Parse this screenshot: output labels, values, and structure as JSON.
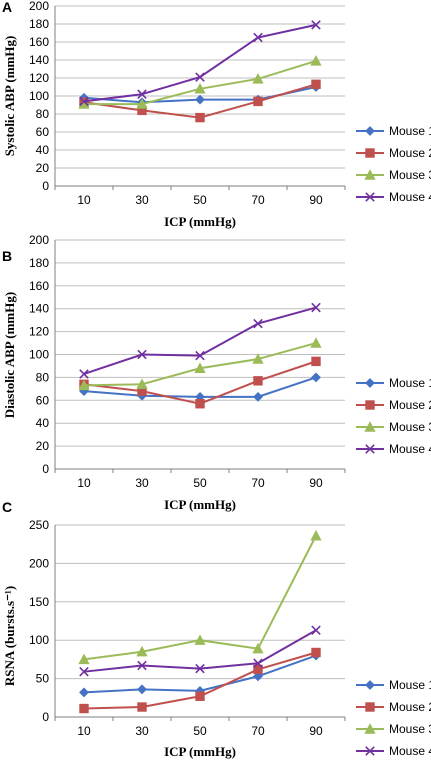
{
  "colors": {
    "mouse1": "#4472C4",
    "mouse2": "#C0504D",
    "mouse3": "#9BBB59",
    "mouse4": "#7030A0"
  },
  "chart_data": [
    {
      "panel": "A",
      "type": "line",
      "categories": [
        "10",
        "30",
        "50",
        "70",
        "90"
      ],
      "ylabel": "Systolic ABP (mmHg)",
      "xlabel": "ICP (mmHg)",
      "ylim": [
        0,
        200
      ],
      "yticks": [
        "0",
        "20",
        "40",
        "60",
        "80",
        "100",
        "120",
        "140",
        "160",
        "180",
        "200"
      ],
      "grid": true,
      "legend": "right",
      "series": [
        {
          "name": "Mouse 1",
          "marker": "diamond",
          "values": [
            98,
            93,
            96,
            96,
            110
          ]
        },
        {
          "name": "Mouse 2",
          "marker": "square",
          "values": [
            93,
            84,
            76,
            94,
            113
          ]
        },
        {
          "name": "Mouse 3",
          "marker": "triangle",
          "values": [
            91,
            91,
            108,
            119,
            139
          ]
        },
        {
          "name": "Mouse 4",
          "marker": "x",
          "values": [
            94,
            102,
            121,
            165,
            179
          ]
        }
      ]
    },
    {
      "panel": "B",
      "type": "line",
      "categories": [
        "10",
        "30",
        "50",
        "70",
        "90"
      ],
      "ylabel": "Diastolic ABP (mmHg)",
      "xlabel": "ICP (mmHg)",
      "ylim": [
        0,
        200
      ],
      "yticks": [
        "0",
        "20",
        "40",
        "60",
        "80",
        "100",
        "120",
        "140",
        "160",
        "180",
        "200"
      ],
      "grid": true,
      "legend": "right",
      "series": [
        {
          "name": "Mouse 1",
          "marker": "diamond",
          "values": [
            68,
            64,
            63,
            63,
            80
          ]
        },
        {
          "name": "Mouse 2",
          "marker": "square",
          "values": [
            74,
            68,
            57,
            77,
            94
          ]
        },
        {
          "name": "Mouse 3",
          "marker": "triangle",
          "values": [
            73,
            74,
            88,
            96,
            110
          ]
        },
        {
          "name": "Mouse 4",
          "marker": "x",
          "values": [
            83,
            100,
            99,
            127,
            141
          ]
        }
      ]
    },
    {
      "panel": "C",
      "type": "line",
      "categories": [
        "10",
        "30",
        "50",
        "70",
        "90"
      ],
      "ylabel": "RSNA (bursts.s⁻¹)",
      "xlabel": "ICP (mmHg)",
      "ylim": [
        0,
        250
      ],
      "yticks": [
        "0",
        "50",
        "100",
        "150",
        "200",
        "250"
      ],
      "grid": true,
      "legend": "right",
      "series": [
        {
          "name": "Mouse 1",
          "marker": "diamond",
          "values": [
            32,
            36,
            34,
            53,
            80
          ]
        },
        {
          "name": "Mouse 2",
          "marker": "square",
          "values": [
            11,
            13,
            27,
            62,
            84
          ]
        },
        {
          "name": "Mouse 3",
          "marker": "triangle",
          "values": [
            75,
            85,
            100,
            89,
            236
          ]
        },
        {
          "name": "Mouse 4",
          "marker": "x",
          "values": [
            59,
            67,
            63,
            70,
            113
          ]
        }
      ]
    }
  ]
}
